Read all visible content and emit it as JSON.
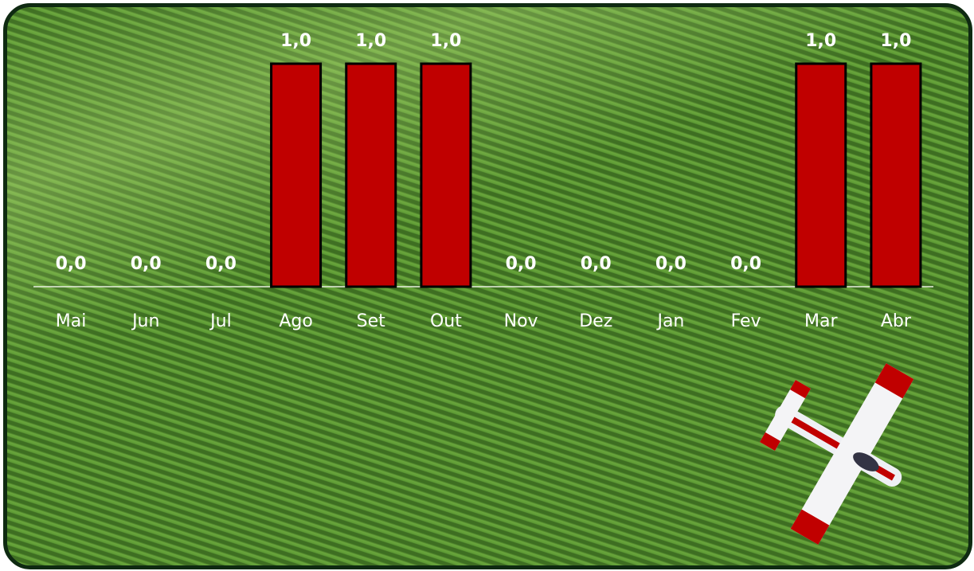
{
  "chart_data": {
    "type": "bar",
    "categories": [
      "Mai",
      "Jun",
      "Jul",
      "Ago",
      "Set",
      "Out",
      "Nov",
      "Dez",
      "Jan",
      "Fev",
      "Mar",
      "Abr"
    ],
    "values": [
      0,
      0,
      0,
      1,
      1,
      1,
      0,
      0,
      0,
      0,
      1,
      1
    ],
    "value_labels": [
      "0,0",
      "0,0",
      "0,0",
      "1,0",
      "1,0",
      "1,0",
      "0,0",
      "0,0",
      "0,0",
      "0,0",
      "1,0",
      "1,0"
    ],
    "color": "#c00000"
  }
}
